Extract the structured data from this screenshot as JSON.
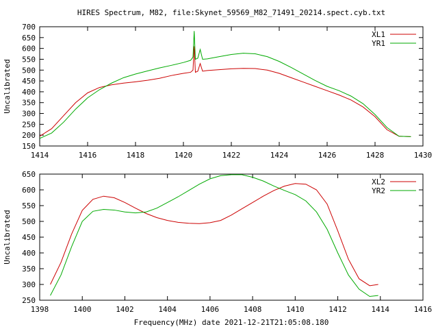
{
  "title": "HIRES Spectrum, M82, file:Skynet_59569_M82_71491_20214.spect.cyb.txt",
  "xlabel": "Frequency(MHz) date 2021-12-21T21:05:08.180",
  "chart_data": [
    {
      "type": "line",
      "title": "HIRES Spectrum, M82, file:Skynet_59569_M82_71491_20214.spect.cyb.txt",
      "xlabel": "",
      "ylabel": "Uncalibrated",
      "xlim": [
        1414,
        1430
      ],
      "ylim": [
        150,
        700
      ],
      "xticks": [
        1414,
        1416,
        1418,
        1420,
        1422,
        1424,
        1426,
        1428,
        1430
      ],
      "yticks": [
        150,
        200,
        250,
        300,
        350,
        400,
        450,
        500,
        550,
        600,
        650,
        700
      ],
      "grid": false,
      "legend": "top-right",
      "series": [
        {
          "name": "XL1",
          "color": "#cc0000",
          "x": [
            1414.0,
            1414.5,
            1415.0,
            1415.5,
            1416.0,
            1416.5,
            1417.0,
            1417.5,
            1418.0,
            1418.5,
            1419.0,
            1419.5,
            1420.0,
            1420.3,
            1420.4,
            1420.45,
            1420.5,
            1420.6,
            1420.7,
            1420.8,
            1421.0,
            1421.5,
            1422.0,
            1422.5,
            1423.0,
            1423.5,
            1424.0,
            1424.5,
            1425.0,
            1425.5,
            1426.0,
            1426.5,
            1427.0,
            1427.5,
            1428.0,
            1428.5,
            1429.0,
            1429.5
          ],
          "y": [
            195,
            230,
            290,
            350,
            395,
            420,
            432,
            440,
            446,
            453,
            462,
            475,
            485,
            490,
            500,
            610,
            490,
            495,
            530,
            495,
            498,
            502,
            506,
            508,
            507,
            500,
            485,
            465,
            445,
            425,
            405,
            385,
            362,
            330,
            285,
            225,
            195,
            193
          ]
        },
        {
          "name": "YR1",
          "color": "#00aa00",
          "x": [
            1414.0,
            1414.5,
            1415.0,
            1415.5,
            1416.0,
            1416.5,
            1417.0,
            1417.5,
            1418.0,
            1418.5,
            1419.0,
            1419.5,
            1420.0,
            1420.3,
            1420.4,
            1420.45,
            1420.5,
            1420.6,
            1420.7,
            1420.8,
            1421.0,
            1421.5,
            1422.0,
            1422.5,
            1423.0,
            1423.5,
            1424.0,
            1424.5,
            1425.0,
            1425.5,
            1426.0,
            1426.5,
            1427.0,
            1427.5,
            1428.0,
            1428.5,
            1429.0,
            1429.5
          ],
          "y": [
            185,
            210,
            260,
            320,
            372,
            410,
            440,
            465,
            482,
            496,
            510,
            522,
            535,
            545,
            560,
            680,
            550,
            555,
            595,
            550,
            552,
            562,
            572,
            578,
            575,
            562,
            540,
            512,
            482,
            452,
            425,
            405,
            380,
            345,
            295,
            235,
            195,
            193
          ]
        }
      ]
    },
    {
      "type": "line",
      "title": "",
      "xlabel": "Frequency(MHz) date 2021-12-21T21:05:08.180",
      "ylabel": "Uncalibrated",
      "xlim": [
        1398,
        1416
      ],
      "ylim": [
        250,
        650
      ],
      "xticks": [
        1398,
        1400,
        1402,
        1404,
        1406,
        1408,
        1410,
        1412,
        1414,
        1416
      ],
      "yticks": [
        250,
        300,
        350,
        400,
        450,
        500,
        550,
        600,
        650
      ],
      "grid": false,
      "legend": "top-right",
      "series": [
        {
          "name": "XL2",
          "color": "#cc0000",
          "x": [
            1398.5,
            1399.0,
            1399.5,
            1400.0,
            1400.5,
            1401.0,
            1401.5,
            1402.0,
            1402.5,
            1403.0,
            1403.5,
            1404.0,
            1404.5,
            1405.0,
            1405.5,
            1406.0,
            1406.5,
            1407.0,
            1407.5,
            1408.0,
            1408.5,
            1409.0,
            1409.5,
            1410.0,
            1410.5,
            1411.0,
            1411.5,
            1412.0,
            1412.5,
            1413.0,
            1413.5,
            1413.9
          ],
          "y": [
            300,
            370,
            460,
            535,
            570,
            580,
            575,
            560,
            542,
            525,
            512,
            503,
            497,
            494,
            493,
            496,
            503,
            520,
            540,
            560,
            580,
            598,
            612,
            620,
            618,
            600,
            555,
            470,
            380,
            318,
            296,
            300
          ]
        },
        {
          "name": "YR2",
          "color": "#00aa00",
          "x": [
            1398.5,
            1399.0,
            1399.5,
            1400.0,
            1400.5,
            1401.0,
            1401.5,
            1402.0,
            1402.5,
            1403.0,
            1403.5,
            1404.0,
            1404.5,
            1405.0,
            1405.5,
            1406.0,
            1406.5,
            1407.0,
            1407.5,
            1408.0,
            1408.5,
            1409.0,
            1409.5,
            1410.0,
            1410.5,
            1411.0,
            1411.5,
            1412.0,
            1412.5,
            1413.0,
            1413.5,
            1413.9
          ],
          "y": [
            265,
            330,
            420,
            500,
            532,
            538,
            536,
            530,
            527,
            530,
            542,
            560,
            578,
            598,
            618,
            635,
            645,
            648,
            648,
            640,
            628,
            612,
            598,
            585,
            565,
            530,
            475,
            400,
            330,
            285,
            262,
            265
          ]
        }
      ]
    }
  ]
}
